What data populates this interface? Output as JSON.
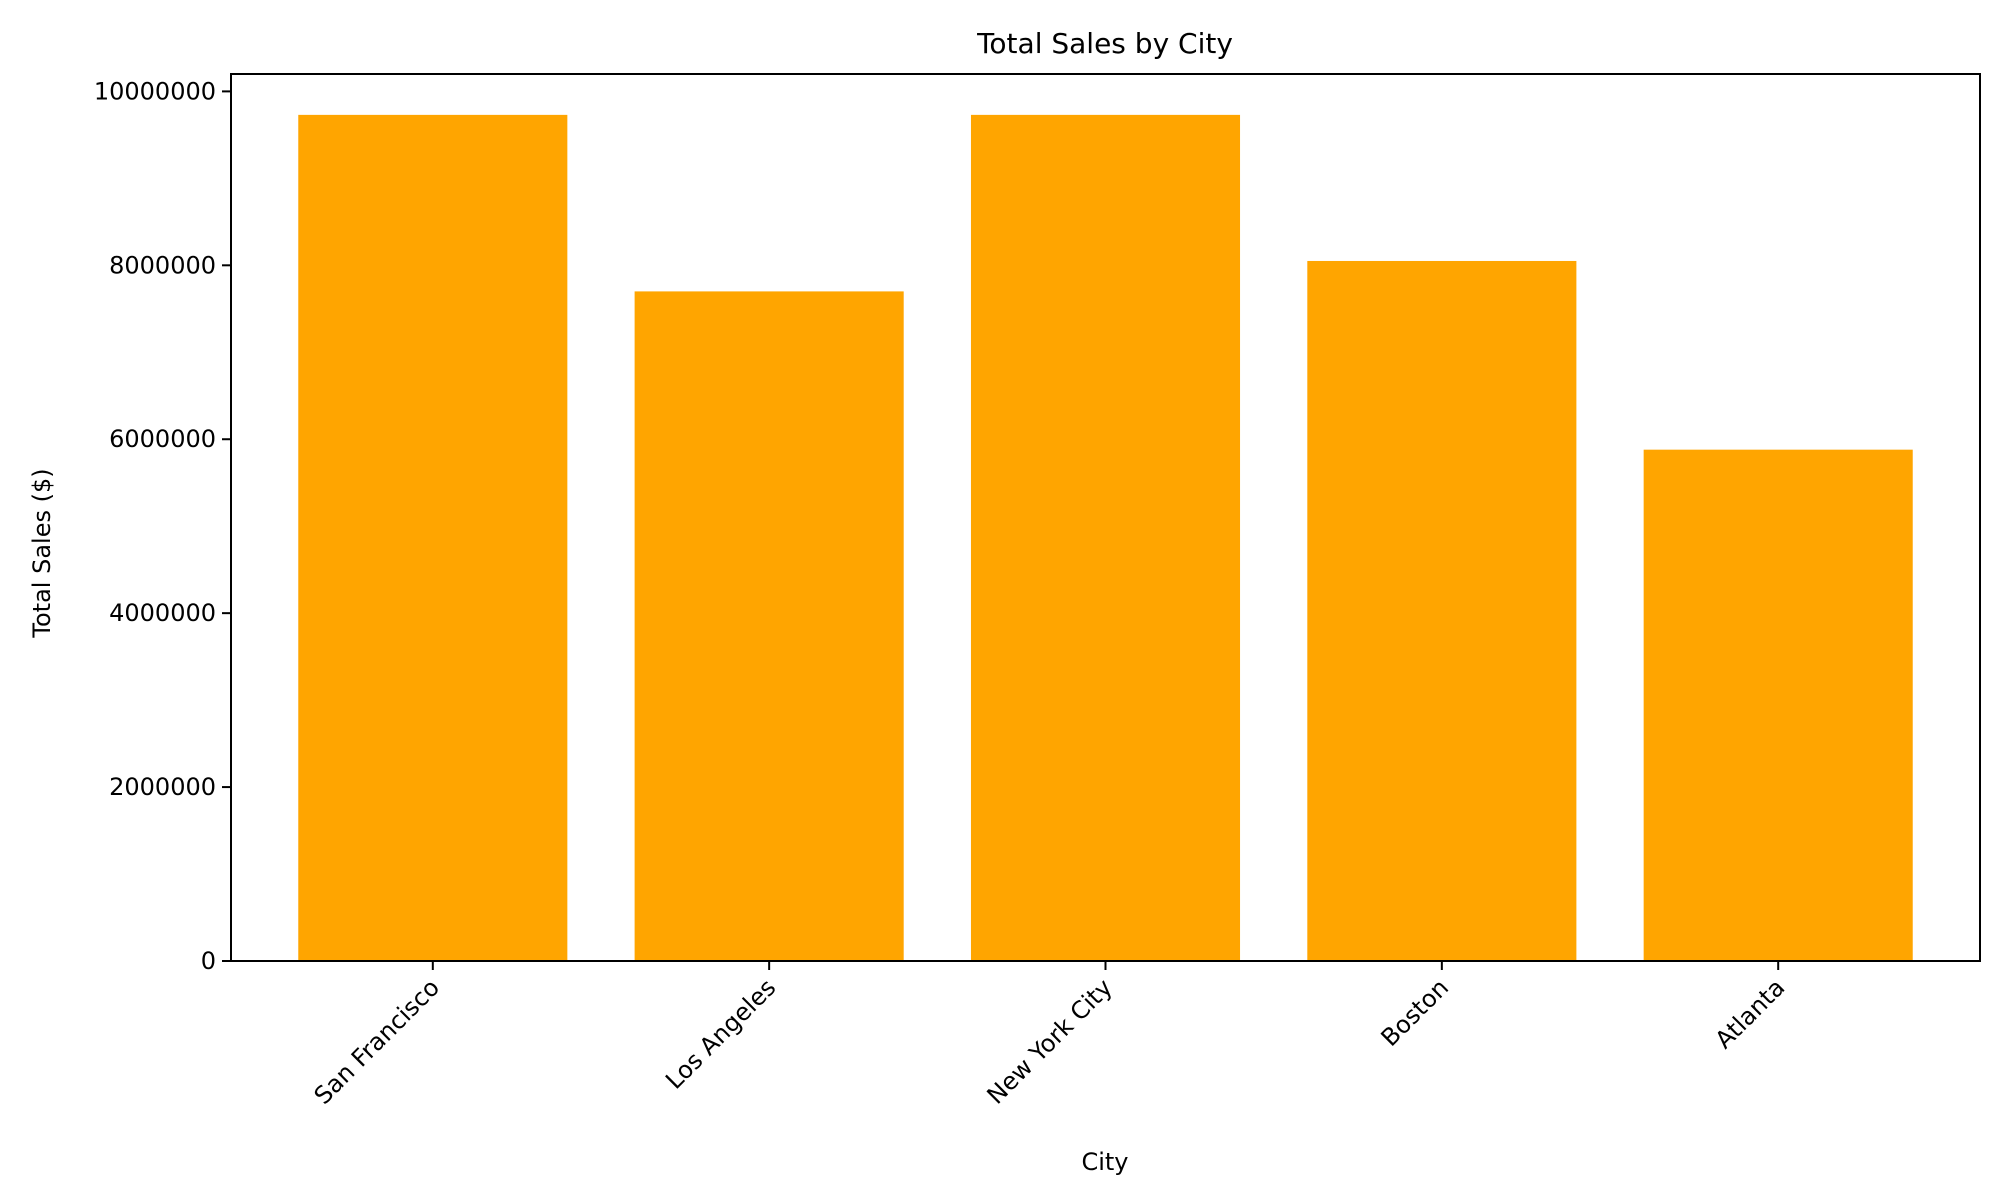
{
  "chart_data": {
    "type": "bar",
    "title": "Total Sales by City",
    "xlabel": "City",
    "ylabel": "Total Sales ($)",
    "categories": [
      "San Francisco",
      "Los Angeles",
      "New York City",
      "Boston",
      "Atlanta"
    ],
    "values": [
      9730000,
      7700000,
      9730000,
      8050000,
      5880000
    ],
    "ylim": [
      0,
      10200000
    ],
    "y_ticks": [
      0,
      2000000,
      4000000,
      6000000,
      8000000,
      10000000
    ],
    "y_tick_labels": [
      "0",
      "2000000",
      "4000000",
      "6000000",
      "8000000",
      "10000000"
    ],
    "bar_color": "#FFA500",
    "axis_color": "#000000",
    "grid": false,
    "x_tick_rotation_deg": 45
  }
}
